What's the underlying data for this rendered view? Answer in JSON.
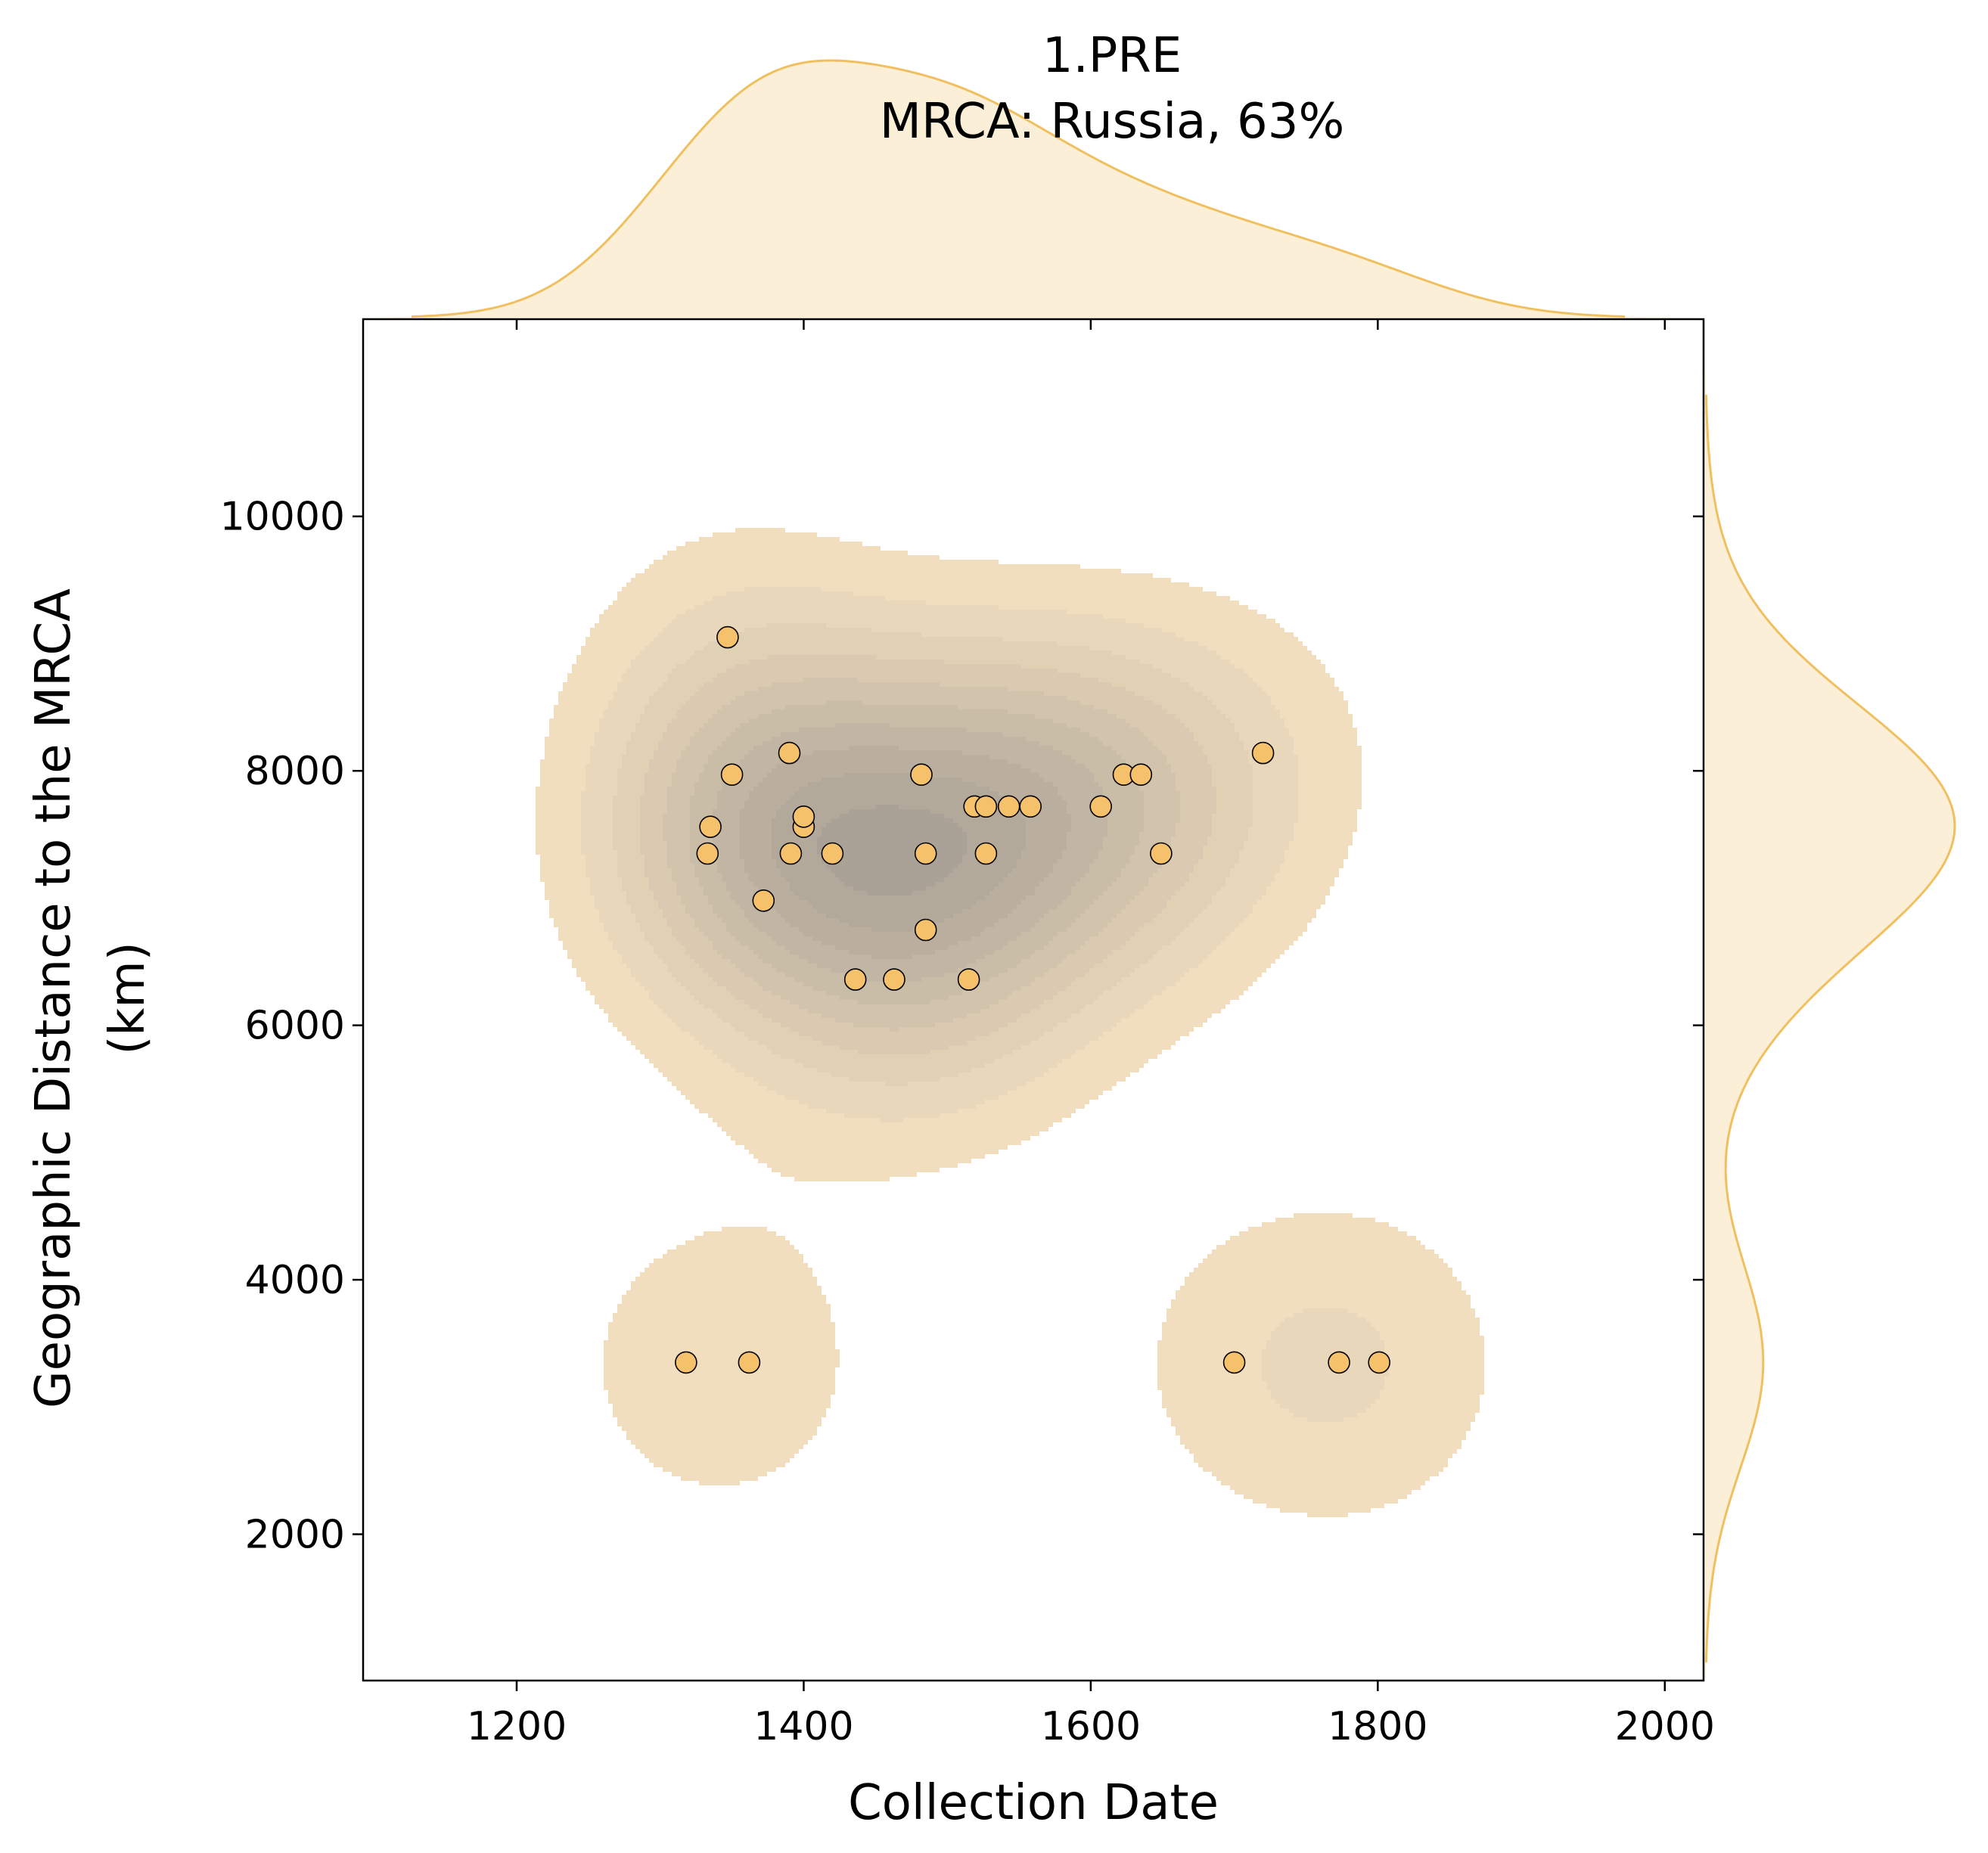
{
  "chart_data": {
    "type": "scatter",
    "title_lines": [
      "1.PRE",
      "MRCA: Russia, 63%"
    ],
    "xlabel": "Collection Date",
    "ylabel_lines": [
      "Geographic Distance to the MRCA",
      "(km)"
    ],
    "xlim": [
      1093,
      2027
    ],
    "ylim": [
      850,
      11550
    ],
    "xticks": [
      1200,
      1400,
      1600,
      1800,
      2000
    ],
    "yticks": [
      2000,
      4000,
      6000,
      8000,
      10000
    ],
    "marker_color": "#f5c26b",
    "kde_color": "#f0c060",
    "series": [
      {
        "x": [
          1347,
          1350,
          1390,
          1335,
          1333,
          1372,
          1391,
          1400,
          1400,
          1420,
          1482,
          1485,
          1485,
          1436,
          1463,
          1515,
          1519,
          1527,
          1543,
          1558,
          1527,
          1607,
          1623,
          1635,
          1649,
          1720,
          1318,
          1362,
          1700,
          1773,
          1801
        ],
        "y": [
          9050,
          7970,
          8140,
          7560,
          7350,
          6980,
          7350,
          7560,
          7640,
          7350,
          7970,
          7350,
          6750,
          6360,
          6360,
          6360,
          7720,
          7720,
          7720,
          7720,
          7350,
          7720,
          7970,
          7970,
          7350,
          8140,
          3350,
          3350,
          3350,
          3350,
          3350
        ]
      }
    ],
    "grid": false,
    "legend": "none"
  }
}
